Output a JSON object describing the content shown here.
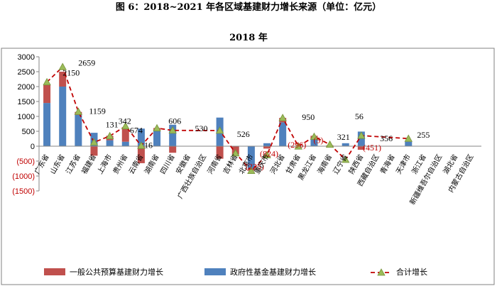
{
  "chart_data": {
    "type": "bar",
    "title": "图 6：2018~2021 年各区域基建财力增长来源（单位：亿元）",
    "subtitle": "2018 年",
    "ylim": [
      -1500,
      3000
    ],
    "yticks": [
      "3000",
      "2500",
      "2000",
      "1500",
      "1000",
      "500",
      "0",
      "(500)",
      "(1000)",
      "(1500)"
    ],
    "ytick_values": [
      3000,
      2500,
      2000,
      1500,
      1000,
      500,
      0,
      -500,
      -1000,
      -1500
    ],
    "categories": [
      "广东省",
      "山东省",
      "江苏省",
      "福建省",
      "上海市",
      "贵州省",
      "云南省",
      "湖南省",
      "四川省",
      "安徽省",
      "广西壮族自治区",
      "河南省",
      "吉林省",
      "北京市",
      "重庆市",
      "河北省",
      "甘肃省",
      "黑龙江省",
      "海南省",
      "辽宁省",
      "陕西省",
      "西藏自治区",
      "青海省",
      "天津市",
      "浙江省",
      "新疆维吾尔自治区",
      "湖北省",
      "内蒙古自治区"
    ],
    "series": [
      {
        "name": "一般公共预算基建财力增长",
        "color": "#c0504d",
        "values": [
          600,
          500,
          100,
          -320,
          150,
          450,
          -570,
          80,
          -220,
          0,
          0,
          -420,
          -280,
          -60,
          -80,
          150,
          0,
          100,
          20,
          0,
          -120,
          0,
          0,
          0,
          0,
          0,
          0,
          0
        ]
      },
      {
        "name": "政府性基金基建财力增长",
        "color": "#4f81bd",
        "values": [
          1450,
          2000,
          1050,
          450,
          200,
          150,
          590,
          530,
          720,
          0,
          0,
          960,
          0,
          -760,
          100,
          800,
          0,
          250,
          10,
          100,
          490,
          0,
          0,
          150,
          0,
          0,
          0,
          0
        ]
      },
      {
        "name": "合计增长",
        "color": "#c00000",
        "values": [
          2150,
          2659,
          1159,
          131,
          342,
          674,
          16,
          606,
          530,
          null,
          null,
          526,
          -235,
          -824,
          -296,
          950,
          -5,
          321,
          56,
          -451,
          356,
          null,
          null,
          255,
          null,
          null,
          null,
          null
        ]
      }
    ],
    "data_labels": [
      {
        "i": 1,
        "text": "2150",
        "dx": 0,
        "dy": 12
      },
      {
        "i": 1,
        "text": "2659",
        "dx": 22,
        "dy": -2
      },
      {
        "i": 2,
        "text": "1159",
        "dx": 15,
        "dy": 3
      },
      {
        "i": 4,
        "text": "131",
        "dx": -6,
        "dy": -12
      },
      {
        "i": 5,
        "text": "342",
        "dx": -10,
        "dy": -3
      },
      {
        "i": 6,
        "text": "674",
        "dx": -16,
        "dy": -18
      },
      {
        "i": 7,
        "text": "16",
        "dx": -18,
        "dy": 28
      },
      {
        "i": 8,
        "text": "606",
        "dx": -6,
        "dy": -9
      },
      {
        "i": 10,
        "text": "530",
        "dx": -13,
        "dy": -21
      },
      {
        "i": 12,
        "text": "526",
        "dx": 2,
        "dy": -23
      },
      {
        "i": 13,
        "text": "(235)",
        "dx": -8,
        "dy": -2
      },
      {
        "i": 14,
        "text": "(824)",
        "dx": -10,
        "dy": 2
      },
      {
        "i": 16,
        "text": "(296)",
        "dx": -15,
        "dy": 2
      },
      {
        "i": 16,
        "text": "950",
        "dx": 5,
        "dy": -37
      },
      {
        "i": 17,
        "text": "(5)",
        "dx": -1,
        "dy": 9
      },
      {
        "i": 19,
        "text": "321",
        "dx": -12,
        "dy": -28
      },
      {
        "i": 20,
        "text": "56",
        "dx": -9,
        "dy": -23
      },
      {
        "i": 21,
        "text": "(451)",
        "dx": -20,
        "dy": 6
      },
      {
        "i": 22,
        "text": "356",
        "dx": -18,
        "dy": -7
      },
      {
        "i": 24,
        "text": "255",
        "dx": -10,
        "dy": -12
      }
    ],
    "legend": {
      "position": "bottom"
    }
  }
}
